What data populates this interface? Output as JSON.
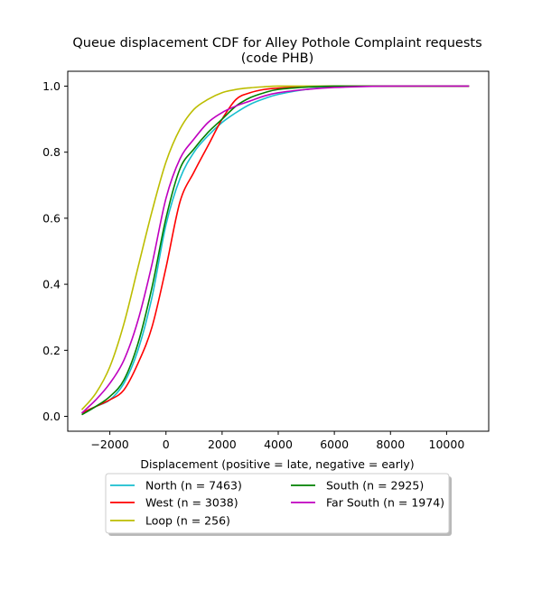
{
  "chart_data": {
    "type": "line",
    "title_line1": "Queue displacement CDF for Alley Pothole Complaint  requests",
    "title_line2": "(code PHB)",
    "xlabel": "Displacement (positive = late, negative = early)",
    "ylabel": "",
    "xlim": [
      -3500,
      11500
    ],
    "ylim": [
      -0.045,
      1.045
    ],
    "x_ticks": [
      -2000,
      0,
      2000,
      4000,
      6000,
      8000,
      10000
    ],
    "x_tick_labels": [
      "−2000",
      "0",
      "2000",
      "4000",
      "6000",
      "8000",
      "10000"
    ],
    "y_ticks": [
      0.0,
      0.2,
      0.4,
      0.6,
      0.8,
      1.0
    ],
    "y_tick_labels": [
      "0.0",
      "0.2",
      "0.4",
      "0.6",
      "0.8",
      "1.0"
    ],
    "grid": false,
    "legend_placement": "below plot, two columns, shadowed frame",
    "series": [
      {
        "name": "North (n = 7463)",
        "color": "#17becf",
        "x": [
          -3000,
          -2500,
          -2000,
          -1500,
          -1000,
          -500,
          0,
          500,
          1000,
          1500,
          2000,
          2500,
          3000,
          3500,
          4000,
          5000,
          6000,
          8000,
          10800
        ],
        "y": [
          0.01,
          0.03,
          0.05,
          0.1,
          0.2,
          0.36,
          0.58,
          0.72,
          0.8,
          0.85,
          0.89,
          0.92,
          0.945,
          0.962,
          0.975,
          0.99,
          0.997,
          1.0,
          1.0
        ]
      },
      {
        "name": "West (n = 3038)",
        "color": "#ff0000",
        "x": [
          -3000,
          -2500,
          -2000,
          -1500,
          -1000,
          -500,
          0,
          500,
          1000,
          1500,
          2000,
          2500,
          3000,
          3500,
          4000,
          5000,
          6000,
          8000,
          10800
        ],
        "y": [
          0.01,
          0.03,
          0.05,
          0.08,
          0.16,
          0.27,
          0.45,
          0.65,
          0.74,
          0.82,
          0.9,
          0.96,
          0.98,
          0.99,
          0.994,
          0.998,
          1.0,
          1.0,
          1.0
        ]
      },
      {
        "name": "Loop (n = 256)",
        "color": "#bcbd00",
        "x": [
          -3000,
          -2500,
          -2000,
          -1500,
          -1000,
          -500,
          0,
          500,
          1000,
          1500,
          2000,
          2500,
          3000,
          3500,
          4000,
          5000,
          6000,
          8000,
          10800
        ],
        "y": [
          0.02,
          0.07,
          0.15,
          0.28,
          0.45,
          0.62,
          0.77,
          0.87,
          0.93,
          0.96,
          0.98,
          0.99,
          0.995,
          0.998,
          1.0,
          1.0,
          1.0,
          1.0,
          1.0
        ]
      },
      {
        "name": "South (n = 2925)",
        "color": "#008000",
        "x": [
          -3000,
          -2500,
          -2000,
          -1500,
          -1000,
          -500,
          0,
          500,
          1000,
          1500,
          2000,
          2500,
          3000,
          3500,
          4000,
          5000,
          6000,
          8000,
          10800
        ],
        "y": [
          0.005,
          0.03,
          0.06,
          0.11,
          0.22,
          0.39,
          0.6,
          0.75,
          0.81,
          0.86,
          0.9,
          0.94,
          0.965,
          0.98,
          0.99,
          0.997,
          1.0,
          1.0,
          1.0
        ]
      },
      {
        "name": "Far South (n = 1974)",
        "color": "#bf00bf",
        "x": [
          -3000,
          -2500,
          -2000,
          -1500,
          -1000,
          -500,
          0,
          500,
          1000,
          1500,
          2000,
          2500,
          3000,
          3500,
          4000,
          5000,
          6000,
          8000,
          10800
        ],
        "y": [
          0.01,
          0.05,
          0.1,
          0.17,
          0.29,
          0.46,
          0.66,
          0.78,
          0.84,
          0.89,
          0.92,
          0.94,
          0.955,
          0.97,
          0.98,
          0.99,
          0.996,
          1.0,
          1.0
        ]
      }
    ]
  }
}
